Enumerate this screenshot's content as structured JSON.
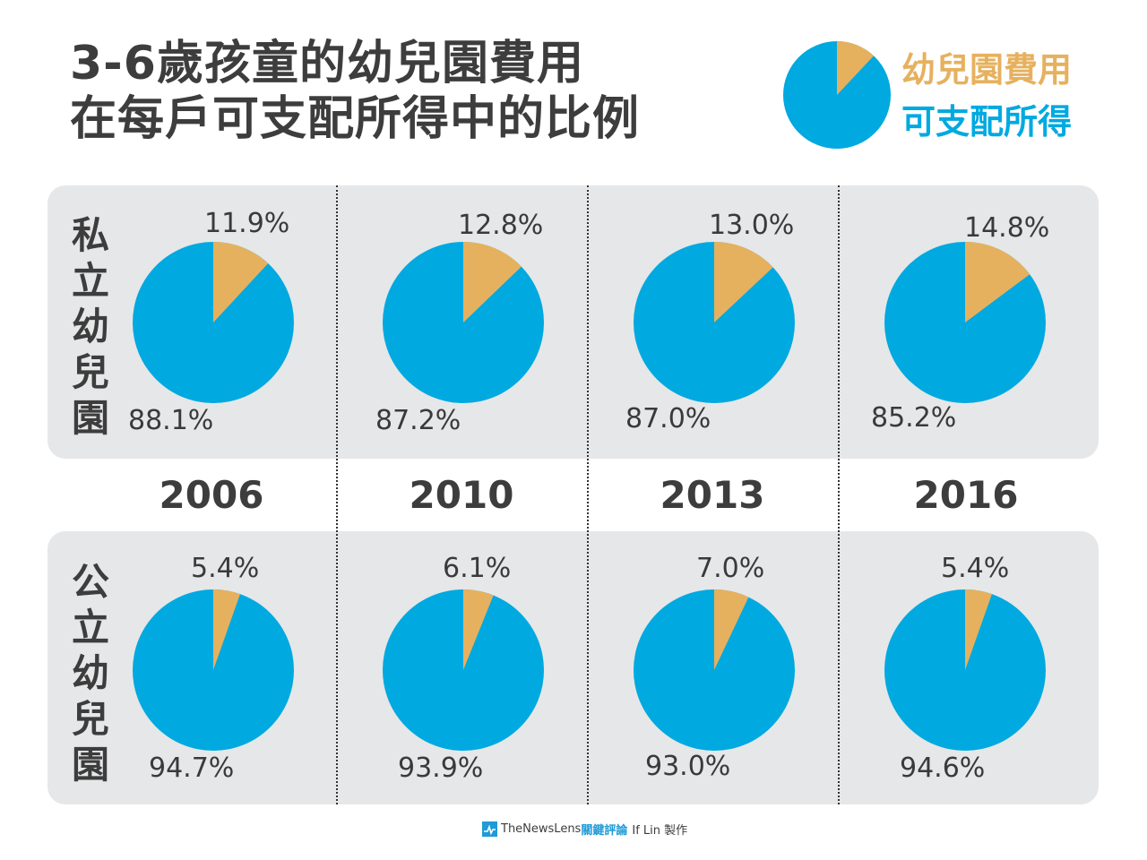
{
  "title": {
    "line1": "3-6歲孩童的幼兒園費用",
    "line2": "在每戶可支配所得中的比例"
  },
  "legend": {
    "fee_label": "幼兒園費用",
    "income_label": "可支配所得"
  },
  "colors": {
    "fee": "#e6b15e",
    "income": "#00a9e0",
    "panel": "#e6e7e8"
  },
  "row_labels": {
    "private": [
      "私",
      "立",
      "幼",
      "兒",
      "園"
    ],
    "public": [
      "公",
      "立",
      "幼",
      "兒",
      "園"
    ]
  },
  "footer": {
    "brand_en": "TheNewsLens",
    "brand_cn": "關鍵評論",
    "credit": "If Lin 製作"
  },
  "chart_data": {
    "type": "pie",
    "title": "3-6歲孩童的幼兒園費用在每戶可支配所得中的比例",
    "categories": [
      "2006",
      "2010",
      "2013",
      "2016"
    ],
    "slice_names": [
      "幼兒園費用",
      "可支配所得"
    ],
    "series": [
      {
        "name": "私立幼兒園",
        "values": [
          {
            "fee": 11.9,
            "income": 88.1,
            "fee_label": "11.9%",
            "income_label": "88.1%"
          },
          {
            "fee": 12.8,
            "income": 87.2,
            "fee_label": "12.8%",
            "income_label": "87.2%"
          },
          {
            "fee": 13.0,
            "income": 87.0,
            "fee_label": "13.0%",
            "income_label": "87.0%"
          },
          {
            "fee": 14.8,
            "income": 85.2,
            "fee_label": "14.8%",
            "income_label": "85.2%"
          }
        ]
      },
      {
        "name": "公立幼兒園",
        "values": [
          {
            "fee": 5.4,
            "income": 94.7,
            "fee_label": "5.4%",
            "income_label": "94.7%"
          },
          {
            "fee": 6.1,
            "income": 93.9,
            "fee_label": "6.1%",
            "income_label": "93.9%"
          },
          {
            "fee": 7.0,
            "income": 93.0,
            "fee_label": "7.0%",
            "income_label": "93.0%"
          },
          {
            "fee": 5.4,
            "income": 94.6,
            "fee_label": "5.4%",
            "income_label": "94.6%"
          }
        ]
      }
    ],
    "legend_position": "top-right"
  }
}
